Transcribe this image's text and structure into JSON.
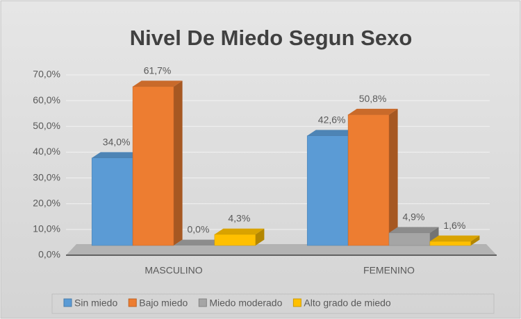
{
  "chart_data": {
    "type": "bar",
    "title": "Nivel De Miedo Segun Sexo",
    "categories": [
      "MASCULINO",
      "FEMENINO"
    ],
    "series": [
      {
        "name": "Sin miedo",
        "color": "#5b9bd5",
        "values": [
          34.0,
          42.6
        ],
        "value_labels": [
          "34,0%",
          "42,6%"
        ]
      },
      {
        "name": "Bajo miedo",
        "color": "#ed7d31",
        "values": [
          61.7,
          50.8
        ],
        "value_labels": [
          "61,7%",
          "50,8%"
        ]
      },
      {
        "name": "Miedo moderado",
        "color": "#a5a5a5",
        "values": [
          0.0,
          4.9
        ],
        "value_labels": [
          "0,0%",
          "4,9%"
        ]
      },
      {
        "name": "Alto grado de miedo",
        "color": "#ffc000",
        "values": [
          4.3,
          1.6
        ],
        "value_labels": [
          "4,3%",
          "1,6%"
        ]
      }
    ],
    "ylim": [
      0,
      70
    ],
    "yticks": [
      {
        "value": 0,
        "label": "0,0%"
      },
      {
        "value": 10,
        "label": "10,0%"
      },
      {
        "value": 20,
        "label": "20,0%"
      },
      {
        "value": 30,
        "label": "30,0%"
      },
      {
        "value": 40,
        "label": "40,0%"
      },
      {
        "value": 50,
        "label": "50,0%"
      },
      {
        "value": 60,
        "label": "60,0%"
      },
      {
        "value": 70,
        "label": "70,0%"
      }
    ],
    "grid": true,
    "legend": "bottom"
  }
}
